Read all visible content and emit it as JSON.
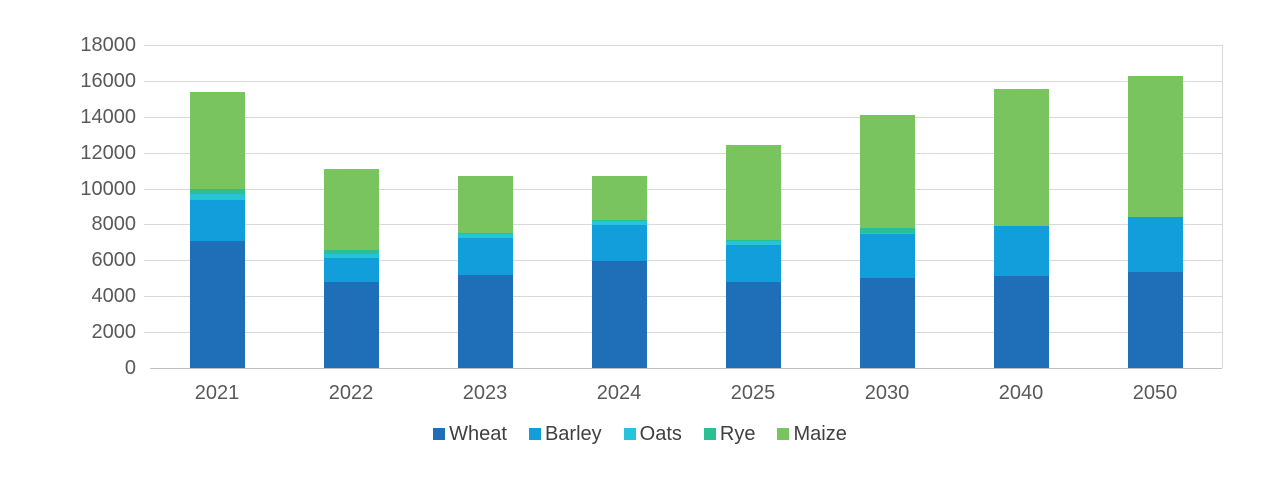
{
  "chart_data": {
    "type": "bar",
    "stacked": true,
    "title": "",
    "xlabel": "",
    "ylabel": "",
    "categories": [
      "2021",
      "2022",
      "2023",
      "2024",
      "2025",
      "2030",
      "2040",
      "2050"
    ],
    "series": [
      {
        "name": "Wheat",
        "color": "#1E6FB8",
        "values": [
          7100,
          4800,
          5200,
          5950,
          4800,
          5000,
          5100,
          5350
        ]
      },
      {
        "name": "Barley",
        "color": "#129DDB",
        "values": [
          2250,
          1350,
          2050,
          2000,
          2050,
          2450,
          2800,
          3050
        ]
      },
      {
        "name": "Oats",
        "color": "#26C4DA",
        "values": [
          350,
          220,
          200,
          250,
          200,
          100,
          0,
          0
        ]
      },
      {
        "name": "Rye",
        "color": "#2CBF94",
        "values": [
          300,
          230,
          50,
          50,
          100,
          250,
          0,
          0
        ]
      },
      {
        "name": "Maize",
        "color": "#7AC45F",
        "values": [
          5400,
          4500,
          3200,
          2450,
          5250,
          6300,
          7650,
          7850
        ]
      }
    ],
    "totals": [
      15400,
      11100,
      10700,
      10700,
      12400,
      14100,
      15550,
      16250
    ],
    "ylim": [
      0,
      18000
    ],
    "ytick_step": 2000,
    "ytick_labels": [
      "0",
      "2000",
      "4000",
      "6000",
      "8000",
      "10000",
      "12000",
      "14000",
      "16000",
      "18000"
    ],
    "grid": true,
    "legend_position": "bottom",
    "legend_labels": [
      "Wheat",
      "Barley",
      "Oats",
      "Rye",
      "Maize"
    ]
  },
  "style": {
    "background": "#FFFFFF",
    "gridline_color": "#D9D9D9",
    "axis_line_color": "#BFBFBF",
    "axis_text_color": "#595959",
    "legend_text_color": "#404040"
  }
}
